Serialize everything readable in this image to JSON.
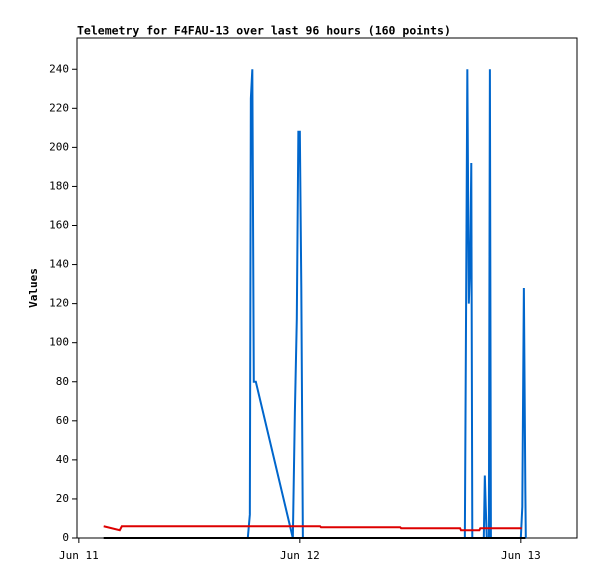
{
  "chart_data": {
    "type": "line",
    "title": "Telemetry for F4FAU-13 over last 96 hours (160 points)",
    "y_label": "Values",
    "xlim": [
      -0.2,
      54.1
    ],
    "ylim": [
      0,
      256
    ],
    "xticks": [
      {
        "value": 0,
        "label": "Jun 11"
      },
      {
        "value": 24,
        "label": "Jun 12"
      },
      {
        "value": 48,
        "label": "Jun 13"
      }
    ],
    "yticks": [
      0,
      20,
      40,
      60,
      80,
      100,
      120,
      140,
      160,
      180,
      200,
      220,
      240
    ],
    "grid": false,
    "series": [
      {
        "color": "#000000",
        "x": [
          2.7,
          48.5
        ],
        "values": [
          0,
          0
        ]
      },
      {
        "color": "#dd0000",
        "x": [
          2.7,
          4.45,
          4.67,
          26.2,
          26.3,
          34.9,
          35.0,
          41.4,
          41.5,
          43.5,
          43.6,
          48.1
        ],
        "values": [
          6,
          4,
          6,
          6,
          5.5,
          5.5,
          5,
          5,
          4,
          4,
          5,
          5
        ]
      },
      {
        "color": "#0066cc",
        "x": [
          18.35,
          18.57,
          18.68,
          18.84,
          19.0,
          19.22,
          23.24,
          23.46,
          23.67,
          23.84,
          24.0,
          24.16,
          24.33,
          41.92,
          42.03,
          42.19,
          42.35,
          42.51,
          42.62,
          42.73,
          43.98,
          44.09,
          44.19,
          44.3,
          44.53,
          44.64,
          44.75,
          48.0,
          48.16,
          48.33,
          48.49,
          48.54
        ],
        "values": [
          0,
          12,
          225,
          240,
          80,
          80,
          0,
          64,
          112,
          208,
          208,
          128,
          0,
          0,
          96,
          240,
          120,
          144,
          192,
          0,
          0,
          32,
          16,
          0,
          0,
          240,
          0,
          0,
          16,
          128,
          24,
          0
        ]
      }
    ]
  }
}
